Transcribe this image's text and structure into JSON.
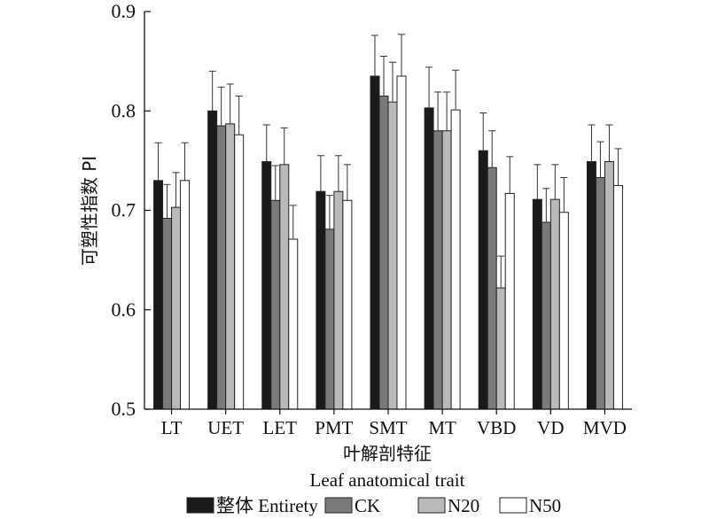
{
  "chart_data": {
    "type": "bar",
    "categories": [
      "LT",
      "UET",
      "LET",
      "PMT",
      "SMT",
      "MT",
      "VBD",
      "VD",
      "MVD"
    ],
    "series": [
      {
        "name": "整体 Entirety",
        "color": "#1a1a1a",
        "values": [
          0.73,
          0.8,
          0.749,
          0.719,
          0.835,
          0.803,
          0.76,
          0.711,
          0.749
        ],
        "errors": [
          0.038,
          0.04,
          0.037,
          0.036,
          0.041,
          0.041,
          0.038,
          0.035,
          0.037
        ]
      },
      {
        "name": "CK",
        "color": "#7a7a7a",
        "values": [
          0.692,
          0.785,
          0.71,
          0.681,
          0.815,
          0.78,
          0.743,
          0.688,
          0.733
        ],
        "errors": [
          0.034,
          0.039,
          0.035,
          0.034,
          0.04,
          0.039,
          0.037,
          0.034,
          0.036
        ]
      },
      {
        "name": "N20",
        "color": "#b9b9b9",
        "values": [
          0.703,
          0.787,
          0.746,
          0.719,
          0.809,
          0.78,
          0.622,
          0.711,
          0.749
        ],
        "errors": [
          0.035,
          0.04,
          0.037,
          0.036,
          0.04,
          0.039,
          0.032,
          0.035,
          0.037
        ]
      },
      {
        "name": "N50",
        "color": "#ffffff",
        "values": [
          0.73,
          0.776,
          0.671,
          0.71,
          0.835,
          0.801,
          0.717,
          0.698,
          0.725
        ],
        "errors": [
          0.038,
          0.039,
          0.034,
          0.036,
          0.042,
          0.04,
          0.037,
          0.035,
          0.037
        ]
      }
    ],
    "ylabel": "可塑性指数 PI",
    "xlabel_cn": "叶解剖特征",
    "xlabel_en": "Leaf anatomical trait",
    "ylim": [
      0.5,
      0.9
    ],
    "yticks": [
      0.5,
      0.6,
      0.7,
      0.8,
      0.9
    ],
    "ytick_labels": [
      "0.5",
      "0.6",
      "0.7",
      "0.8",
      "0.9"
    ],
    "grid": false,
    "legend_position": "bottom"
  }
}
